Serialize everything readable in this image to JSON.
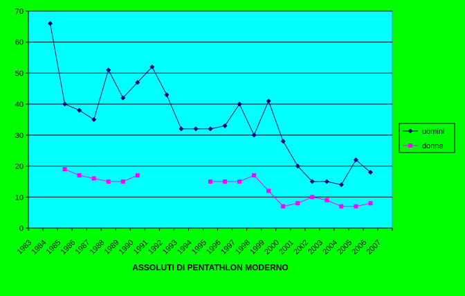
{
  "chart_data": {
    "type": "line",
    "title": "ASSOLUTI DI PENTATHLON MODERNO",
    "xlabel": "",
    "ylabel": "",
    "categories": [
      "1983",
      "1984",
      "1985",
      "1986",
      "1987",
      "1988",
      "1989",
      "1990",
      "1991",
      "1992",
      "1993",
      "1994",
      "1995",
      "1996",
      "1997",
      "1998",
      "1999",
      "2000",
      "2001",
      "2002",
      "2003",
      "2004",
      "2005",
      "2006",
      "2007"
    ],
    "ylim": [
      0,
      70
    ],
    "yticks": [
      0,
      10,
      20,
      30,
      40,
      50,
      60,
      70
    ],
    "grid": true,
    "legend_position": "right",
    "series": [
      {
        "name": "uomini",
        "color": "#000080",
        "marker": "diamond",
        "values": [
          null,
          66,
          40,
          38,
          35,
          51,
          42,
          47,
          52,
          43,
          32,
          32,
          32,
          33,
          40,
          30,
          41,
          28,
          20,
          15,
          15,
          14,
          22,
          18,
          null
        ]
      },
      {
        "name": "donne",
        "color": "#ff00ff",
        "marker": "square",
        "values": [
          null,
          null,
          19,
          17,
          16,
          15,
          15,
          17,
          null,
          null,
          null,
          null,
          15,
          15,
          15,
          17,
          12,
          7,
          8,
          10,
          9,
          7,
          7,
          8,
          null
        ]
      }
    ],
    "colors": {
      "page_background": "#00ff00",
      "plot_background": "#00ffff",
      "gridlines": "#000000"
    }
  }
}
